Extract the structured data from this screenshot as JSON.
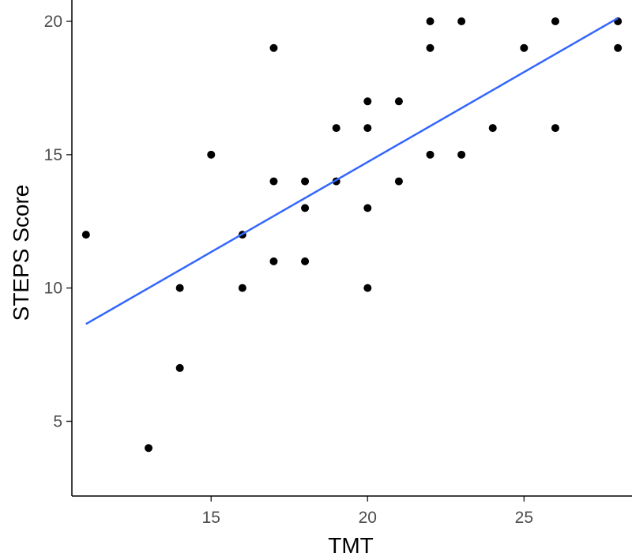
{
  "chart_data": {
    "type": "scatter",
    "title": "",
    "xlabel": "TMT",
    "ylabel": "STEPS Score",
    "xlim": [
      10.55,
      28.45
    ],
    "ylim": [
      2.2,
      20.8
    ],
    "xticks": [
      15,
      20,
      25
    ],
    "yticks": [
      5,
      10,
      15,
      20
    ],
    "xtick_labels": [
      "15",
      "20",
      "25"
    ],
    "ytick_labels": [
      "5",
      "10",
      "15",
      "20"
    ],
    "grid": false,
    "legend": "none",
    "point_color": "#000000",
    "line_color": "#3366FF",
    "points": [
      {
        "x": 11,
        "y": 12
      },
      {
        "x": 13,
        "y": 4
      },
      {
        "x": 14,
        "y": 10
      },
      {
        "x": 14,
        "y": 7
      },
      {
        "x": 15,
        "y": 15
      },
      {
        "x": 16,
        "y": 12
      },
      {
        "x": 16,
        "y": 10
      },
      {
        "x": 17,
        "y": 19
      },
      {
        "x": 17,
        "y": 14
      },
      {
        "x": 17,
        "y": 11
      },
      {
        "x": 18,
        "y": 14
      },
      {
        "x": 18,
        "y": 13
      },
      {
        "x": 18,
        "y": 11
      },
      {
        "x": 19,
        "y": 16
      },
      {
        "x": 19,
        "y": 14
      },
      {
        "x": 20,
        "y": 17
      },
      {
        "x": 20,
        "y": 16
      },
      {
        "x": 20,
        "y": 13
      },
      {
        "x": 20,
        "y": 10
      },
      {
        "x": 21,
        "y": 17
      },
      {
        "x": 21,
        "y": 14
      },
      {
        "x": 22,
        "y": 20
      },
      {
        "x": 22,
        "y": 19
      },
      {
        "x": 22,
        "y": 15
      },
      {
        "x": 23,
        "y": 20
      },
      {
        "x": 23,
        "y": 15
      },
      {
        "x": 24,
        "y": 16
      },
      {
        "x": 25,
        "y": 19
      },
      {
        "x": 26,
        "y": 20
      },
      {
        "x": 26,
        "y": 16
      },
      {
        "x": 28,
        "y": 20
      },
      {
        "x": 28,
        "y": 19
      }
    ],
    "trend_line": {
      "x": [
        11,
        28
      ],
      "y": [
        8.65,
        20.12
      ]
    }
  }
}
